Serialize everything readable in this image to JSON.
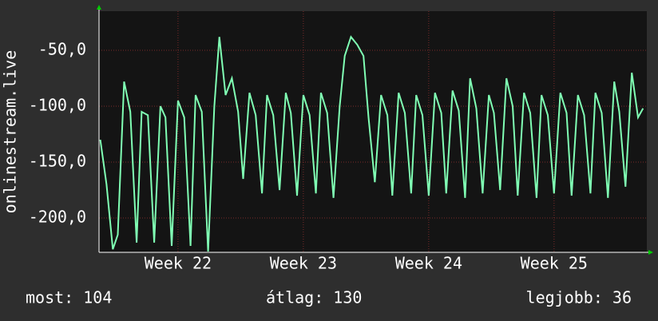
{
  "chart_data": {
    "type": "line",
    "y_label": "onlinestream.live",
    "x": [
      21.38,
      21.43,
      21.48,
      21.52,
      21.57,
      21.62,
      21.67,
      21.71,
      21.76,
      21.81,
      21.86,
      21.9,
      21.95,
      22,
      22.05,
      22.1,
      22.14,
      22.19,
      22.24,
      22.29,
      22.33,
      22.38,
      22.43,
      22.48,
      22.52,
      22.57,
      22.62,
      22.67,
      22.71,
      22.76,
      22.81,
      22.86,
      22.9,
      22.95,
      23,
      23.05,
      23.1,
      23.14,
      23.19,
      23.24,
      23.29,
      23.33,
      23.38,
      23.43,
      23.48,
      23.52,
      23.57,
      23.62,
      23.67,
      23.71,
      23.76,
      23.81,
      23.86,
      23.9,
      23.95,
      24,
      24.05,
      24.1,
      24.14,
      24.19,
      24.24,
      24.29,
      24.33,
      24.38,
      24.43,
      24.48,
      24.52,
      24.57,
      24.62,
      24.67,
      24.71,
      24.76,
      24.81,
      24.86,
      24.9,
      24.95,
      25,
      25.05,
      25.1,
      25.14,
      25.19,
      25.24,
      25.29,
      25.33,
      25.38,
      25.43,
      25.48,
      25.52,
      25.57,
      25.62,
      25.67,
      25.71
    ],
    "series": [
      {
        "color": "#80ffb4",
        "values": [
          -130,
          -170,
          -228,
          -215,
          -78,
          -105,
          -222,
          -105,
          -108,
          -222,
          -100,
          -110,
          -225,
          -95,
          -110,
          -225,
          -90,
          -105,
          -230,
          -100,
          -38,
          -90,
          -75,
          -105,
          -165,
          -88,
          -108,
          -178,
          -90,
          -108,
          -175,
          -88,
          -106,
          -180,
          -90,
          -108,
          -178,
          -88,
          -106,
          -182,
          -100,
          -55,
          -38,
          -45,
          -55,
          -110,
          -168,
          -90,
          -108,
          -180,
          -88,
          -106,
          -178,
          -90,
          -108,
          -180,
          -88,
          -106,
          -178,
          -86,
          -104,
          -182,
          -75,
          -102,
          -178,
          -90,
          -106,
          -175,
          -75,
          -100,
          -180,
          -88,
          -106,
          -182,
          -90,
          -108,
          -178,
          -88,
          -106,
          -180,
          -90,
          -108,
          -178,
          -88,
          -106,
          -182,
          -78,
          -105,
          -172,
          -70,
          -110,
          -102
        ]
      }
    ],
    "xlim": [
      21.37,
      25.74
    ],
    "xticks": [
      {
        "value": 22,
        "label": "Week 22"
      },
      {
        "value": 23,
        "label": "Week 23"
      },
      {
        "value": 24,
        "label": "Week 24"
      },
      {
        "value": 25,
        "label": "Week 25"
      }
    ],
    "ylim": [
      -230.7,
      -15
    ],
    "yticks": [
      {
        "value": -200,
        "label": "-200,0"
      },
      {
        "value": -150,
        "label": "-150,0"
      },
      {
        "value": -100,
        "label": "-100,0"
      },
      {
        "value": -50,
        "label": "-50,0"
      }
    ],
    "grid": true,
    "stats": [
      "most: 104",
      "átlag: 130",
      "legjobb: 36"
    ]
  }
}
